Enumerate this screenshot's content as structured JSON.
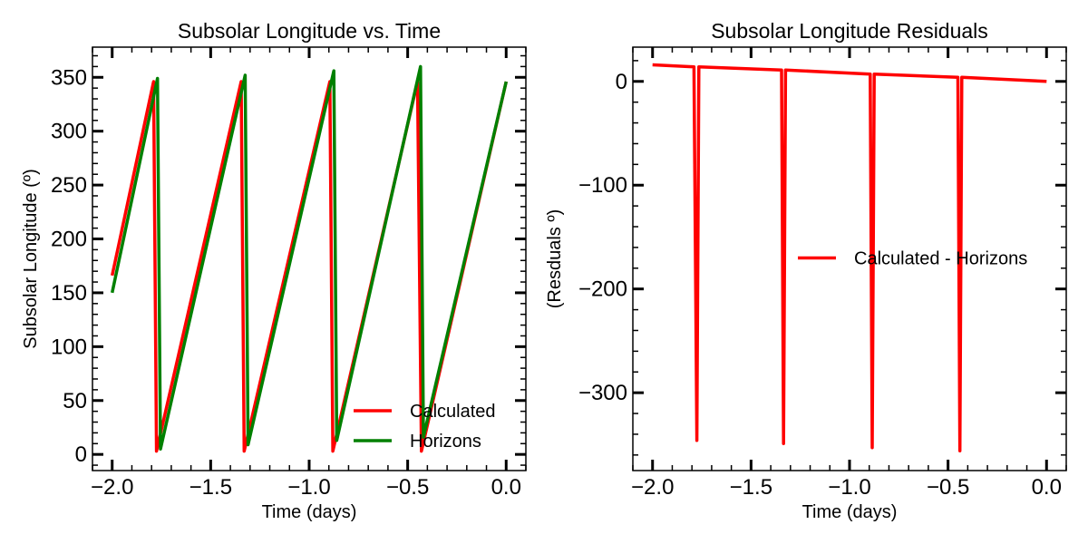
{
  "chart_data": [
    {
      "type": "line",
      "title": "Subsolar Longitude vs. Time",
      "xlabel": "Time (days)",
      "ylabel": "Subsolar Longitude (º)",
      "xlim": [
        -2.1,
        0.1
      ],
      "ylim": [
        -15,
        378
      ],
      "xticks": [
        -2.0,
        -1.5,
        -1.0,
        -0.5,
        0.0
      ],
      "xtick_labels": [
        "−2.0",
        "−1.5",
        "−1.0",
        "−0.5",
        "0.0"
      ],
      "yticks": [
        0,
        50,
        100,
        150,
        200,
        250,
        300,
        350
      ],
      "ytick_labels": [
        "0",
        "50",
        "100",
        "150",
        "200",
        "250",
        "300",
        "350"
      ],
      "x_minor_step": 0.1,
      "y_minor_step": 10,
      "legend_position": "lower-right",
      "series": [
        {
          "name": "Calculated",
          "color": "#ff0000",
          "x": [
            -2.0,
            -1.79,
            -1.775,
            -1.345,
            -1.33,
            -0.895,
            -0.88,
            -0.45,
            -0.43,
            0.0
          ],
          "y": [
            166,
            346,
            3,
            346,
            3,
            346,
            3,
            346,
            3,
            346
          ]
        },
        {
          "name": "Horizons",
          "color": "#008000",
          "x": [
            -2.0,
            -1.77,
            -1.755,
            -1.325,
            -1.31,
            -0.875,
            -0.86,
            -0.435,
            -0.42,
            0.0
          ],
          "y": [
            150,
            349,
            5,
            352,
            9,
            356,
            13,
            360,
            16,
            346
          ]
        }
      ]
    },
    {
      "type": "line",
      "title": "Subsolar Longitude Residuals",
      "xlabel": "Time (days)",
      "ylabel": "(Resduals º)",
      "xlim": [
        -2.1,
        0.1
      ],
      "ylim": [
        -375,
        33
      ],
      "xticks": [
        -2.0,
        -1.5,
        -1.0,
        -0.5,
        0.0
      ],
      "xtick_labels": [
        "−2.0",
        "−1.5",
        "−1.0",
        "−0.5",
        "0.0"
      ],
      "yticks": [
        0,
        -100,
        -200,
        -300
      ],
      "ytick_labels": [
        "0",
        "−100",
        "−200",
        "−300"
      ],
      "x_minor_step": 0.1,
      "y_minor_step": 20,
      "legend_position": "center-right",
      "series": [
        {
          "name": "Calculated - Horizons",
          "color": "#ff0000",
          "x": [
            -2.0,
            -1.79,
            -1.775,
            -1.765,
            -1.345,
            -1.335,
            -1.325,
            -0.895,
            -0.885,
            -0.875,
            -0.45,
            -0.44,
            -0.43,
            0.0
          ],
          "y": [
            16,
            14,
            -346,
            14,
            11,
            -349,
            11,
            7,
            -353,
            7,
            4,
            -356,
            4,
            0
          ]
        }
      ]
    }
  ]
}
